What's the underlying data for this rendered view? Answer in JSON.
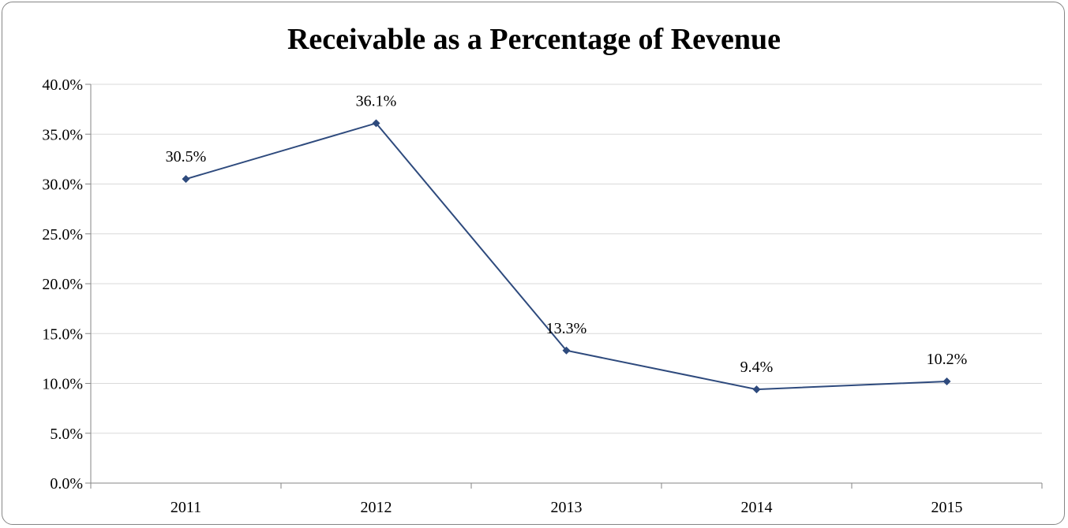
{
  "chart_data": {
    "type": "line",
    "title": "Receivable as a Percentage of Revenue",
    "xlabel": "",
    "ylabel": "",
    "categories": [
      "2011",
      "2012",
      "2013",
      "2014",
      "2015"
    ],
    "series": [
      {
        "values": [
          30.5,
          36.1,
          13.3,
          9.4,
          10.2
        ],
        "labels": [
          "30.5%",
          "36.1%",
          "13.3%",
          "9.4%",
          "10.2%"
        ],
        "color": "#2e4a7d"
      }
    ],
    "ylim": [
      0,
      40
    ],
    "y_ticks": [
      "0.0%",
      "5.0%",
      "10.0%",
      "15.0%",
      "20.0%",
      "25.0%",
      "30.0%",
      "35.0%",
      "40.0%"
    ],
    "grid": true,
    "legend": "none",
    "gridline_color": "#d9d9d9",
    "axis_color": "#868686"
  }
}
